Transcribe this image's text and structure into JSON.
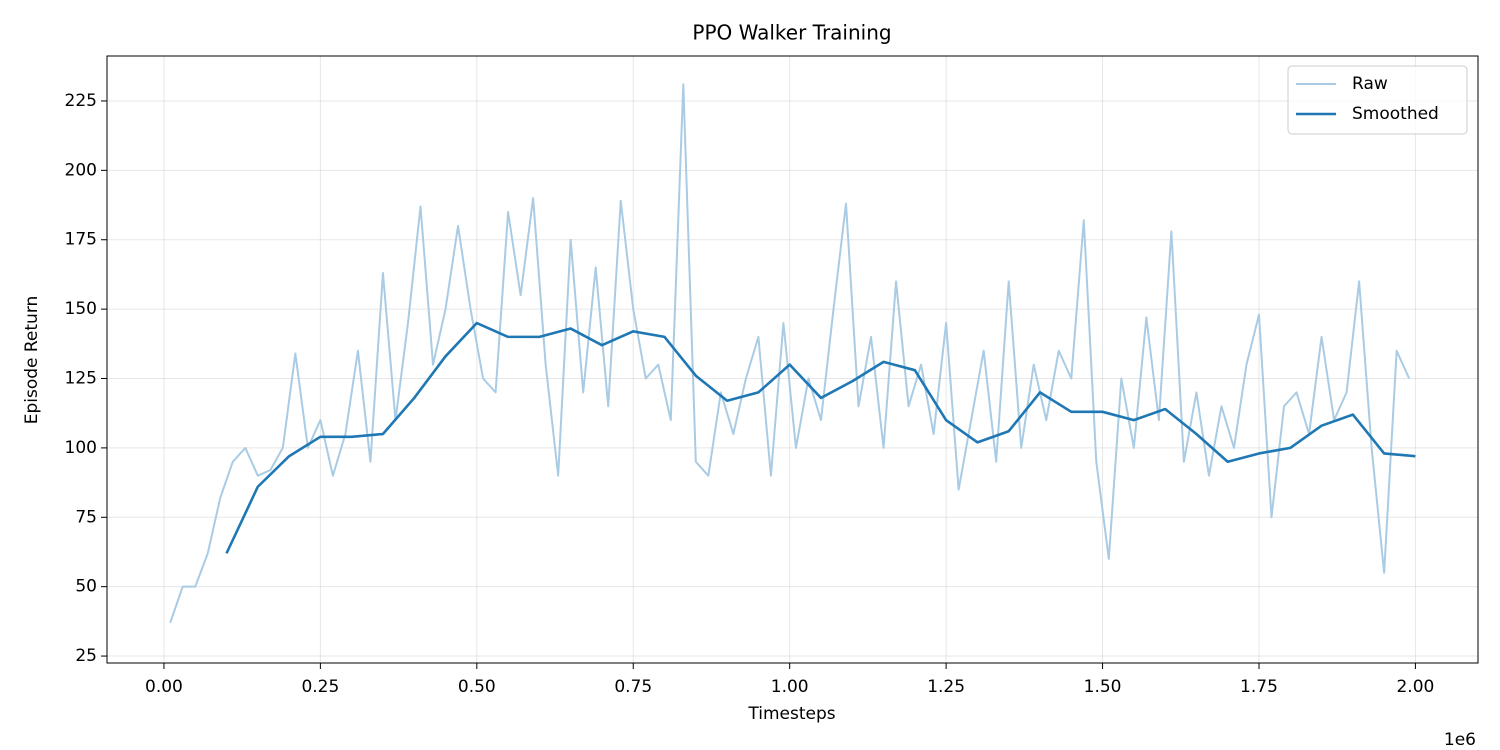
{
  "chart_data": {
    "type": "line",
    "title": "PPO Walker Training",
    "xlabel": "Timesteps",
    "ylabel": "Episode Return",
    "x_offset_label": "1e6",
    "xlim": [
      -0.091,
      2.1
    ],
    "ylim": [
      22.5,
      241.2
    ],
    "xticks": [
      {
        "value": 0,
        "label": "0.00"
      },
      {
        "value": 0.25,
        "label": "0.25"
      },
      {
        "value": 0.5,
        "label": "0.50"
      },
      {
        "value": 0.75,
        "label": "0.75"
      },
      {
        "value": 1,
        "label": "1.00"
      },
      {
        "value": 1.25,
        "label": "1.25"
      },
      {
        "value": 1.5,
        "label": "1.50"
      },
      {
        "value": 1.75,
        "label": "1.75"
      },
      {
        "value": 2,
        "label": "2.00"
      }
    ],
    "yticks": [
      25,
      50,
      75,
      100,
      125,
      150,
      175,
      200,
      225
    ],
    "grid": true,
    "legend": "upper right",
    "series": [
      {
        "name": "Raw",
        "color": "#a9cce4",
        "width": 2,
        "x": [
          0.01,
          0.03,
          0.05,
          0.07,
          0.09,
          0.11,
          0.13,
          0.15,
          0.17,
          0.19,
          0.21,
          0.23,
          0.25,
          0.27,
          0.29,
          0.31,
          0.33,
          0.35,
          0.37,
          0.39,
          0.41,
          0.43,
          0.45,
          0.47,
          0.49,
          0.51,
          0.53,
          0.55,
          0.57,
          0.59,
          0.61,
          0.63,
          0.65,
          0.67,
          0.69,
          0.71,
          0.73,
          0.75,
          0.77,
          0.79,
          0.81,
          0.83,
          0.85,
          0.87,
          0.89,
          0.91,
          0.93,
          0.95,
          0.97,
          0.99,
          1.01,
          1.03,
          1.05,
          1.07,
          1.09,
          1.11,
          1.13,
          1.15,
          1.17,
          1.19,
          1.21,
          1.23,
          1.25,
          1.27,
          1.29,
          1.31,
          1.33,
          1.35,
          1.37,
          1.39,
          1.41,
          1.43,
          1.45,
          1.47,
          1.49,
          1.51,
          1.53,
          1.55,
          1.57,
          1.59,
          1.61,
          1.63,
          1.65,
          1.67,
          1.69,
          1.71,
          1.73,
          1.75,
          1.77,
          1.79,
          1.81,
          1.83,
          1.85,
          1.87,
          1.89,
          1.91,
          1.93,
          1.95,
          1.97,
          1.99
        ],
        "values": [
          37,
          50,
          50,
          62,
          82,
          95,
          100,
          90,
          92,
          100,
          134,
          100,
          110,
          90,
          105,
          135,
          95,
          163,
          110,
          145,
          187,
          130,
          150,
          180,
          150,
          125,
          120,
          185,
          155,
          190,
          130,
          90,
          175,
          120,
          165,
          115,
          189,
          150,
          125,
          130,
          110,
          231,
          95,
          90,
          120,
          105,
          125,
          140,
          90,
          145,
          100,
          125,
          110,
          150,
          188,
          115,
          140,
          100,
          160,
          115,
          130,
          105,
          145,
          85,
          110,
          135,
          95,
          160,
          100,
          130,
          110,
          135,
          125,
          182,
          95,
          60,
          125,
          100,
          147,
          110,
          178,
          95,
          120,
          90,
          115,
          100,
          130,
          148,
          75,
          115,
          120,
          105,
          140,
          110,
          120,
          160,
          100,
          55,
          135,
          125
        ]
      },
      {
        "name": "Smoothed",
        "color": "#1f77b4",
        "width": 2.6,
        "x": [
          0.1,
          0.15,
          0.2,
          0.25,
          0.3,
          0.35,
          0.4,
          0.45,
          0.5,
          0.55,
          0.6,
          0.65,
          0.7,
          0.75,
          0.8,
          0.85,
          0.9,
          0.95,
          1,
          1.05,
          1.1,
          1.15,
          1.2,
          1.25,
          1.3,
          1.35,
          1.4,
          1.45,
          1.5,
          1.55,
          1.6,
          1.65,
          1.7,
          1.75,
          1.8,
          1.85,
          1.9,
          1.95,
          2
        ],
        "values": [
          62,
          86,
          97,
          104,
          104,
          105,
          118,
          133,
          145,
          140,
          140,
          143,
          137,
          142,
          140,
          126,
          117,
          120,
          130,
          118,
          124,
          131,
          128,
          110,
          102,
          106,
          120,
          113,
          113,
          110,
          114,
          105,
          95,
          98,
          100,
          108,
          112,
          98,
          97
        ]
      }
    ]
  }
}
